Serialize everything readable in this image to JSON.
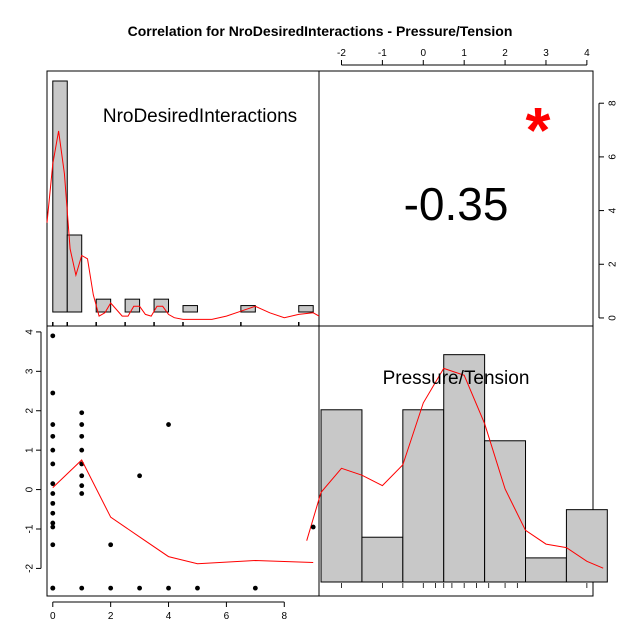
{
  "colors": {
    "red": "#ff0000",
    "bar_fill": "#c8c8c8",
    "black": "#000000"
  },
  "chart_data": {
    "type": "scatter-matrix",
    "title": "Correlation  for NroDesiredInteractions - Pressure/Tension",
    "variables": [
      "NroDesiredInteractions",
      "Pressure/Tension"
    ],
    "correlation": {
      "value": "-0.35",
      "significance": "*"
    },
    "axes": {
      "x_bottom": {
        "ticks": [
          0,
          2,
          4,
          6,
          8
        ],
        "range": [
          -0.2,
          9.2
        ]
      },
      "y_left": {
        "ticks": [
          -2,
          -1,
          0,
          1,
          2,
          3,
          4
        ],
        "range": [
          -2.7,
          4.15
        ]
      },
      "x_top": {
        "ticks": [
          -2,
          -1,
          0,
          1,
          2,
          3,
          4
        ],
        "range": [
          -2.55,
          4.15
        ]
      },
      "y_right": {
        "ticks": [
          0,
          2,
          4,
          6,
          8
        ],
        "range": [
          -0.3,
          9.2
        ]
      }
    },
    "scatter": {
      "x": [
        0,
        0,
        0,
        0,
        0,
        0,
        0,
        0,
        0,
        0,
        0,
        0,
        0,
        0,
        0,
        1,
        1,
        1,
        1,
        1,
        1,
        1,
        1,
        1,
        2,
        2,
        3,
        3,
        4,
        4,
        5,
        7,
        9
      ],
      "y": [
        3.9,
        2.45,
        1.65,
        1.35,
        1.0,
        0.65,
        0.15,
        -0.1,
        -0.35,
        -0.6,
        -0.85,
        -0.95,
        -1.4,
        -2.5,
        -2.5,
        1.95,
        1.65,
        1.35,
        1.0,
        0.65,
        0.35,
        0.1,
        -0.1,
        -2.5,
        -1.4,
        -2.5,
        0.35,
        -2.5,
        1.65,
        -2.5,
        -2.5,
        -2.5,
        -0.95
      ]
    },
    "scatter_smooth": {
      "x": [
        0,
        1,
        2,
        3,
        4,
        5,
        7,
        9
      ],
      "y": [
        0.05,
        0.75,
        -0.7,
        -1.2,
        -1.7,
        -1.88,
        -1.8,
        -1.85
      ]
    },
    "hist_var1": {
      "bin_edges": [
        0,
        0.5,
        1,
        1.5,
        2,
        2.5,
        3,
        3.5,
        4,
        4.5,
        5,
        5.5,
        6,
        6.5,
        7,
        7.5,
        8,
        8.5,
        9
      ],
      "counts": [
        9,
        3,
        0,
        0.5,
        0,
        0.5,
        0,
        0.5,
        0,
        0.25,
        0,
        0,
        0,
        0.25,
        0,
        0,
        0,
        0.25
      ],
      "density_x": [
        -0.2,
        0,
        0.2,
        0.4,
        0.6,
        0.8,
        1.0,
        1.2,
        1.4,
        1.6,
        1.8,
        2.0,
        2.2,
        2.4,
        2.6,
        2.8,
        3.0,
        3.2,
        3.4,
        3.6,
        3.8,
        4.0,
        4.2,
        4.5,
        5.0,
        5.5,
        6.0,
        6.5,
        7.0,
        7.5,
        8.0,
        8.5,
        9.0,
        9.2
      ],
      "density_y": [
        3.0,
        4.8,
        5.8,
        4.5,
        2.2,
        1.4,
        2.0,
        1.9,
        0.8,
        0.15,
        0.25,
        0.55,
        0.35,
        0.15,
        0.15,
        0.45,
        0.45,
        0.2,
        0.15,
        0.45,
        0.45,
        0.2,
        0.1,
        0.05,
        0.05,
        0.05,
        0.15,
        0.3,
        0.45,
        0.25,
        0.1,
        0.2,
        0.25,
        0.15
      ]
    },
    "hist_var2": {
      "bin_edges": [
        -2.5,
        -1.5,
        -0.5,
        0.5,
        1.5,
        2.5,
        3.5,
        4.5
      ],
      "counts": [
        5,
        1.3,
        5,
        6.6,
        4.1,
        0.7,
        2.1
      ],
      "ylim": [
        0,
        7.2
      ],
      "density_x": [
        -2.85,
        -2.5,
        -2.0,
        -1.5,
        -1.0,
        -0.5,
        0.0,
        0.5,
        1.0,
        1.5,
        2.0,
        2.5,
        3.0,
        3.5,
        4.0,
        4.4
      ],
      "density_y": [
        1.2,
        2.6,
        3.3,
        3.1,
        2.8,
        3.4,
        5.2,
        6.2,
        6.0,
        4.6,
        2.7,
        1.5,
        1.1,
        1.0,
        0.6,
        0.4
      ],
      "rug": [
        -2,
        -1,
        -0.5,
        0,
        0.3,
        0.5,
        0.7,
        1.0,
        1.3,
        1.6,
        2.0,
        2.3,
        4.0
      ]
    }
  }
}
